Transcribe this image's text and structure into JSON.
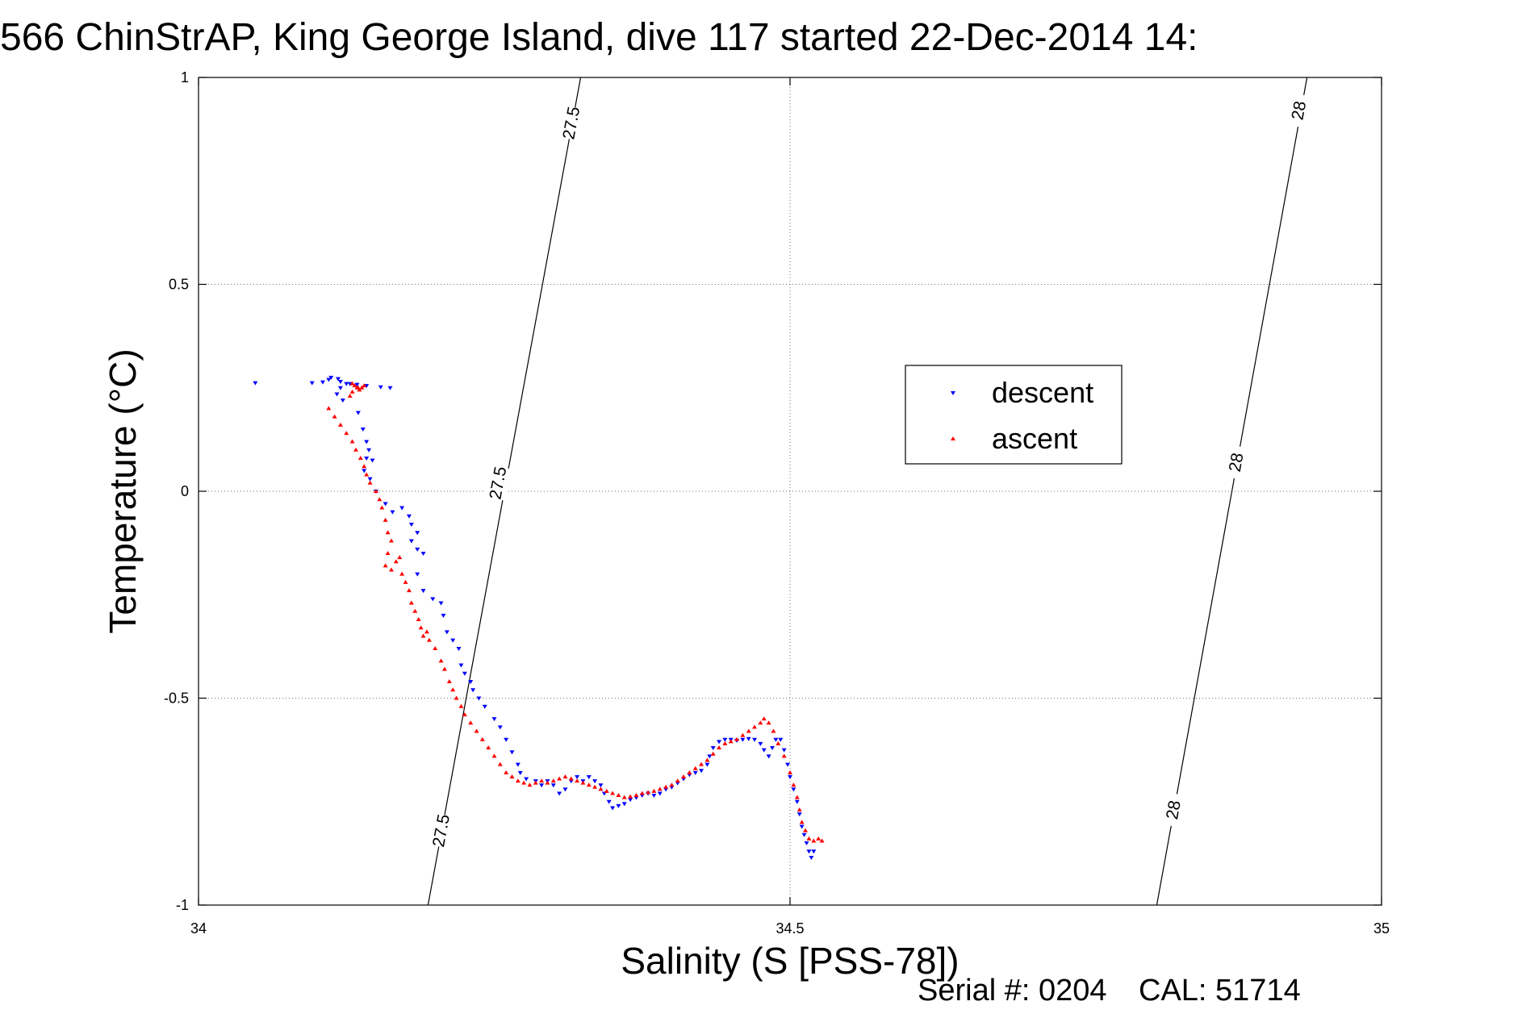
{
  "title": "566 ChinStrAP, King George Island, dive 117 started 22-Dec-2014 14:",
  "footer": {
    "serial": "Serial #: 0204",
    "cal": "CAL: 51714"
  },
  "colors": {
    "descent": "#0000ff",
    "ascent": "#ff0000"
  },
  "chart_data": {
    "type": "scatter",
    "title": "566 ChinStrAP, King George Island, dive 117 started 22-Dec-2014 14:",
    "xlabel": "Salinity (S [PSS-78])",
    "ylabel": "Temperature (°C)",
    "xlim": [
      34,
      35
    ],
    "ylim": [
      -1,
      1
    ],
    "xticks": [
      34,
      34.5,
      35
    ],
    "xtick_labels": [
      "34",
      "34.5",
      "35"
    ],
    "yticks": [
      -1,
      -0.5,
      0,
      0.5,
      1
    ],
    "ytick_labels": [
      "-1",
      "-0.5",
      "0",
      "0.5",
      "1"
    ],
    "grid": true,
    "legend_position": "upper-right",
    "density_contours": [
      {
        "label": "27.5",
        "line": [
          [
            34.194,
            -1.0
          ],
          [
            34.323,
            1.0
          ]
        ],
        "label_positions": [
          [
            34.205,
            -0.82
          ],
          [
            34.253,
            0.02
          ],
          [
            34.315,
            0.89
          ]
        ]
      },
      {
        "label": "28",
        "line": [
          [
            34.81,
            -1.0
          ],
          [
            34.937,
            1.0
          ]
        ],
        "label_positions": [
          [
            34.824,
            -0.77
          ],
          [
            34.877,
            0.07
          ],
          [
            34.93,
            0.92
          ]
        ]
      }
    ],
    "series": [
      {
        "name": "descent",
        "marker": "triangle-down",
        "color": "#0000ff",
        "points": [
          [
            34.048,
            0.262
          ],
          [
            34.096,
            0.262
          ],
          [
            34.105,
            0.264
          ],
          [
            34.11,
            0.27
          ],
          [
            34.112,
            0.275
          ],
          [
            34.118,
            0.272
          ],
          [
            34.12,
            0.265
          ],
          [
            34.125,
            0.26
          ],
          [
            34.12,
            0.25
          ],
          [
            34.117,
            0.235
          ],
          [
            34.122,
            0.22
          ],
          [
            34.128,
            0.26
          ],
          [
            34.134,
            0.258
          ],
          [
            34.142,
            0.255
          ],
          [
            34.154,
            0.252
          ],
          [
            34.162,
            0.25
          ],
          [
            34.135,
            0.19
          ],
          [
            34.139,
            0.15
          ],
          [
            34.142,
            0.12
          ],
          [
            34.144,
            0.1
          ],
          [
            34.142,
            0.08
          ],
          [
            34.147,
            0.075
          ],
          [
            34.14,
            0.05
          ],
          [
            34.145,
            0.03
          ],
          [
            34.15,
            -0.0
          ],
          [
            34.158,
            -0.03
          ],
          [
            34.164,
            -0.05
          ],
          [
            34.172,
            -0.04
          ],
          [
            34.178,
            -0.06
          ],
          [
            34.18,
            -0.08
          ],
          [
            34.185,
            -0.1
          ],
          [
            34.18,
            -0.12
          ],
          [
            34.185,
            -0.14
          ],
          [
            34.19,
            -0.15
          ],
          [
            34.185,
            -0.2
          ],
          [
            34.19,
            -0.24
          ],
          [
            34.198,
            -0.26
          ],
          [
            34.205,
            -0.27
          ],
          [
            34.207,
            -0.3
          ],
          [
            34.21,
            -0.34
          ],
          [
            34.215,
            -0.36
          ],
          [
            34.22,
            -0.38
          ],
          [
            34.222,
            -0.42
          ],
          [
            34.225,
            -0.44
          ],
          [
            34.23,
            -0.46
          ],
          [
            34.232,
            -0.48
          ],
          [
            34.237,
            -0.5
          ],
          [
            34.242,
            -0.52
          ],
          [
            34.25,
            -0.55
          ],
          [
            34.255,
            -0.57
          ],
          [
            34.26,
            -0.6
          ],
          [
            34.265,
            -0.63
          ],
          [
            34.27,
            -0.66
          ],
          [
            34.272,
            -0.68
          ],
          [
            34.277,
            -0.695
          ],
          [
            34.285,
            -0.7
          ],
          [
            34.29,
            -0.71
          ],
          [
            34.295,
            -0.7
          ],
          [
            34.3,
            -0.71
          ],
          [
            34.305,
            -0.73
          ],
          [
            34.31,
            -0.72
          ],
          [
            34.315,
            -0.7
          ],
          [
            34.32,
            -0.69
          ],
          [
            34.325,
            -0.7
          ],
          [
            34.33,
            -0.69
          ],
          [
            34.335,
            -0.7
          ],
          [
            34.34,
            -0.71
          ],
          [
            34.343,
            -0.73
          ],
          [
            34.347,
            -0.75
          ],
          [
            34.35,
            -0.765
          ],
          [
            34.355,
            -0.76
          ],
          [
            34.36,
            -0.755
          ],
          [
            34.365,
            -0.745
          ],
          [
            34.37,
            -0.74
          ],
          [
            34.375,
            -0.735
          ],
          [
            34.38,
            -0.73
          ],
          [
            34.385,
            -0.735
          ],
          [
            34.39,
            -0.73
          ],
          [
            34.395,
            -0.72
          ],
          [
            34.4,
            -0.715
          ],
          [
            34.405,
            -0.705
          ],
          [
            34.41,
            -0.695
          ],
          [
            34.415,
            -0.685
          ],
          [
            34.42,
            -0.68
          ],
          [
            34.425,
            -0.675
          ],
          [
            34.43,
            -0.66
          ],
          [
            34.432,
            -0.64
          ],
          [
            34.435,
            -0.62
          ],
          [
            34.44,
            -0.605
          ],
          [
            34.445,
            -0.6
          ],
          [
            34.45,
            -0.6
          ],
          [
            34.455,
            -0.602
          ],
          [
            34.46,
            -0.6
          ],
          [
            34.465,
            -0.598
          ],
          [
            34.47,
            -0.6
          ],
          [
            34.475,
            -0.61
          ],
          [
            34.478,
            -0.625
          ],
          [
            34.482,
            -0.64
          ],
          [
            34.485,
            -0.62
          ],
          [
            34.488,
            -0.6
          ],
          [
            34.492,
            -0.6
          ],
          [
            34.495,
            -0.625
          ],
          [
            34.498,
            -0.66
          ],
          [
            34.5,
            -0.69
          ],
          [
            34.503,
            -0.72
          ],
          [
            34.506,
            -0.75
          ],
          [
            34.508,
            -0.78
          ],
          [
            34.51,
            -0.81
          ],
          [
            34.512,
            -0.83
          ],
          [
            34.514,
            -0.85
          ],
          [
            34.516,
            -0.87
          ],
          [
            34.518,
            -0.885
          ],
          [
            34.52,
            -0.87
          ]
        ]
      },
      {
        "name": "ascent",
        "marker": "triangle-up",
        "color": "#ff0000",
        "points": [
          [
            34.13,
            0.26
          ],
          [
            34.132,
            0.255
          ],
          [
            34.134,
            0.25
          ],
          [
            34.136,
            0.245
          ],
          [
            34.138,
            0.25
          ],
          [
            34.14,
            0.255
          ],
          [
            34.135,
            0.25
          ],
          [
            34.13,
            0.24
          ],
          [
            34.128,
            0.23
          ],
          [
            34.11,
            0.2
          ],
          [
            34.115,
            0.18
          ],
          [
            34.12,
            0.16
          ],
          [
            34.125,
            0.14
          ],
          [
            34.13,
            0.12
          ],
          [
            34.133,
            0.1
          ],
          [
            34.137,
            0.08
          ],
          [
            34.14,
            0.06
          ],
          [
            34.142,
            0.04
          ],
          [
            34.145,
            0.02
          ],
          [
            34.15,
            -0.0
          ],
          [
            34.153,
            -0.02
          ],
          [
            34.155,
            -0.04
          ],
          [
            34.158,
            -0.07
          ],
          [
            34.16,
            -0.1
          ],
          [
            34.163,
            -0.12
          ],
          [
            34.16,
            -0.15
          ],
          [
            34.158,
            -0.18
          ],
          [
            34.163,
            -0.19
          ],
          [
            34.167,
            -0.17
          ],
          [
            34.17,
            -0.16
          ],
          [
            34.172,
            -0.2
          ],
          [
            34.175,
            -0.22
          ],
          [
            34.178,
            -0.24
          ],
          [
            34.18,
            -0.27
          ],
          [
            34.183,
            -0.29
          ],
          [
            34.186,
            -0.31
          ],
          [
            34.188,
            -0.33
          ],
          [
            34.19,
            -0.35
          ],
          [
            34.193,
            -0.34
          ],
          [
            34.195,
            -0.36
          ],
          [
            34.2,
            -0.38
          ],
          [
            34.205,
            -0.41
          ],
          [
            34.208,
            -0.43
          ],
          [
            34.212,
            -0.46
          ],
          [
            34.215,
            -0.48
          ],
          [
            34.218,
            -0.5
          ],
          [
            34.222,
            -0.52
          ],
          [
            34.225,
            -0.54
          ],
          [
            34.23,
            -0.56
          ],
          [
            34.235,
            -0.58
          ],
          [
            34.24,
            -0.6
          ],
          [
            34.245,
            -0.62
          ],
          [
            34.25,
            -0.64
          ],
          [
            34.255,
            -0.66
          ],
          [
            34.26,
            -0.68
          ],
          [
            34.265,
            -0.69
          ],
          [
            34.27,
            -0.7
          ],
          [
            34.275,
            -0.705
          ],
          [
            34.28,
            -0.71
          ],
          [
            34.285,
            -0.705
          ],
          [
            34.29,
            -0.7
          ],
          [
            34.295,
            -0.705
          ],
          [
            34.3,
            -0.7
          ],
          [
            34.305,
            -0.695
          ],
          [
            34.31,
            -0.69
          ],
          [
            34.315,
            -0.695
          ],
          [
            34.32,
            -0.7
          ],
          [
            34.325,
            -0.705
          ],
          [
            34.33,
            -0.71
          ],
          [
            34.335,
            -0.715
          ],
          [
            34.34,
            -0.72
          ],
          [
            34.345,
            -0.725
          ],
          [
            34.35,
            -0.73
          ],
          [
            34.355,
            -0.735
          ],
          [
            34.36,
            -0.74
          ],
          [
            34.365,
            -0.738
          ],
          [
            34.37,
            -0.735
          ],
          [
            34.375,
            -0.73
          ],
          [
            34.38,
            -0.728
          ],
          [
            34.385,
            -0.725
          ],
          [
            34.39,
            -0.72
          ],
          [
            34.395,
            -0.715
          ],
          [
            34.4,
            -0.71
          ],
          [
            34.405,
            -0.7
          ],
          [
            34.41,
            -0.69
          ],
          [
            34.415,
            -0.68
          ],
          [
            34.42,
            -0.67
          ],
          [
            34.425,
            -0.66
          ],
          [
            34.43,
            -0.65
          ],
          [
            34.435,
            -0.635
          ],
          [
            34.44,
            -0.62
          ],
          [
            34.445,
            -0.61
          ],
          [
            34.45,
            -0.605
          ],
          [
            34.455,
            -0.6
          ],
          [
            34.46,
            -0.59
          ],
          [
            34.465,
            -0.58
          ],
          [
            34.47,
            -0.57
          ],
          [
            34.475,
            -0.56
          ],
          [
            34.478,
            -0.55
          ],
          [
            34.482,
            -0.56
          ],
          [
            34.486,
            -0.58
          ],
          [
            34.49,
            -0.61
          ],
          [
            34.495,
            -0.64
          ],
          [
            34.5,
            -0.68
          ],
          [
            34.503,
            -0.71
          ],
          [
            34.506,
            -0.74
          ],
          [
            34.508,
            -0.77
          ],
          [
            34.51,
            -0.8
          ],
          [
            34.513,
            -0.82
          ],
          [
            34.516,
            -0.84
          ],
          [
            34.52,
            -0.845
          ],
          [
            34.524,
            -0.84
          ],
          [
            34.527,
            -0.845
          ]
        ]
      }
    ]
  }
}
